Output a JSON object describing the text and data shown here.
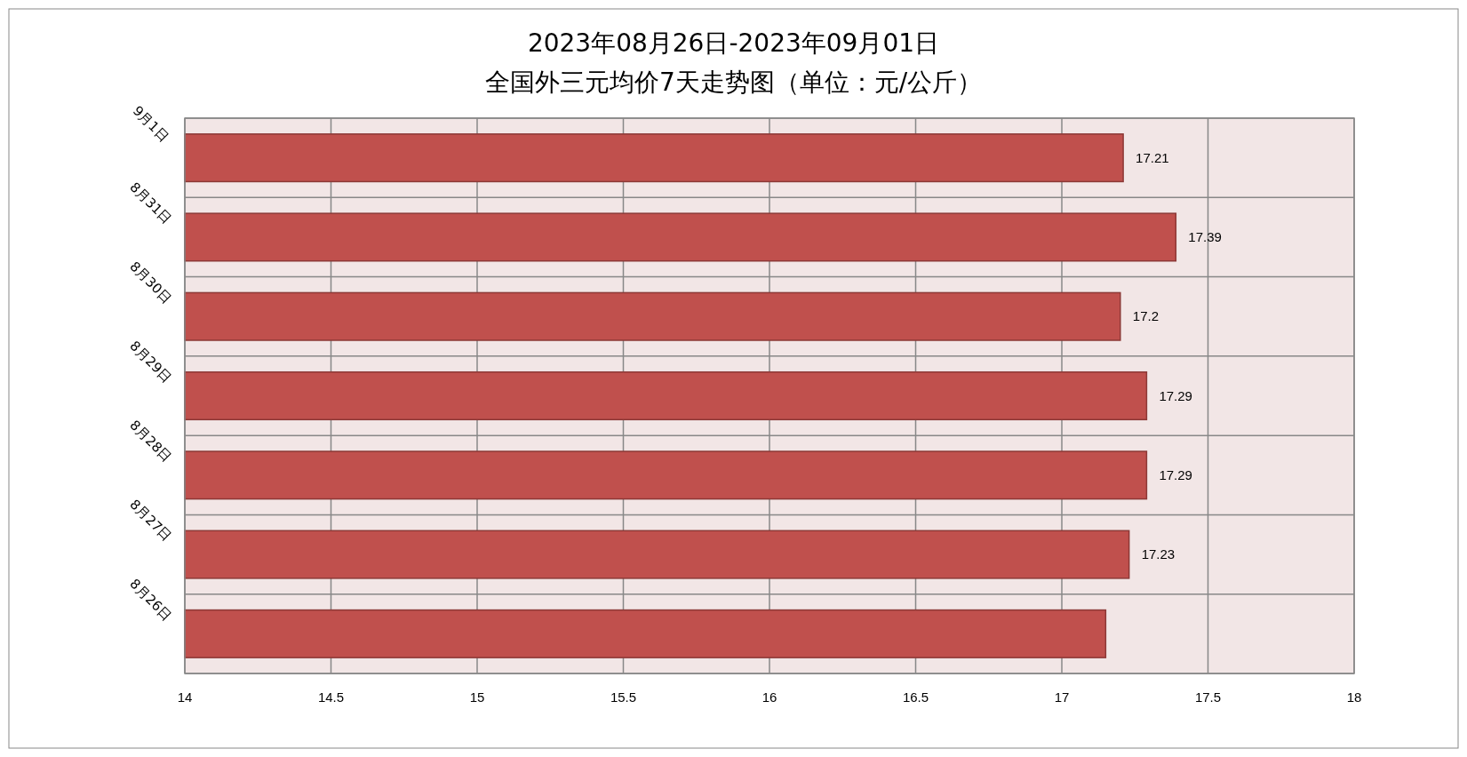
{
  "chart_data": {
    "type": "bar",
    "orientation": "horizontal",
    "title": "2023年08月26日-2023年09月01日",
    "subtitle": "全国外三元均价7天走势图（单位：元/公斤）",
    "categories": [
      "9月1日",
      "8月31日",
      "8月30日",
      "8月29日",
      "8月28日",
      "8月27日",
      "8月26日"
    ],
    "values": [
      17.21,
      17.39,
      17.2,
      17.29,
      17.29,
      17.23,
      17.15
    ],
    "value_labels": [
      "17.21",
      "17.39",
      "17.2",
      "17.29",
      "17.29",
      "17.23",
      null
    ],
    "color": "#c0504d",
    "xlim": [
      14,
      18
    ],
    "xticks": [
      14,
      {
        "value": 14.5,
        "label": "14.5"
      },
      15,
      {
        "value": 15.5,
        "label": "15.5"
      },
      16,
      {
        "value": 16.5,
        "label": "16.5"
      },
      17,
      {
        "value": 17.5,
        "label": "17.5"
      },
      18
    ],
    "grid": "x"
  }
}
